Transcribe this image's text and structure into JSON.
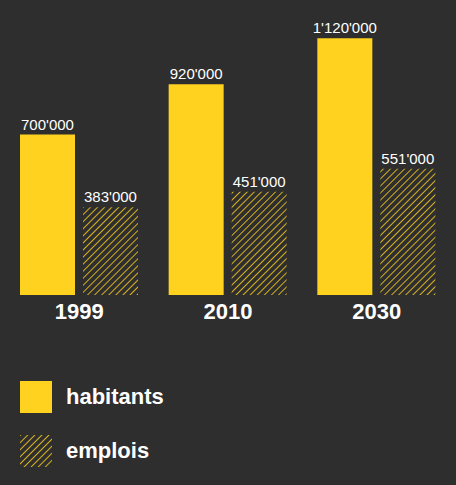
{
  "chart_data": {
    "type": "bar",
    "categories": [
      "1999",
      "2010",
      "2030"
    ],
    "series": [
      {
        "name": "habitants",
        "color": "#ffd21f",
        "line_style": "solid",
        "values": [
          700000,
          920000,
          1120000
        ],
        "value_labels": [
          "700'000",
          "920'000",
          "1'120'000"
        ]
      },
      {
        "name": "emplois",
        "color": "#ffd21f",
        "line_style": "hatched",
        "values": [
          383000,
          451000,
          551000
        ],
        "value_labels": [
          "383'000",
          "451'000",
          "551'000"
        ]
      }
    ],
    "ylim": [
      0,
      1200000
    ],
    "tick_labels": "x",
    "data_labels": true,
    "legend": "bottom"
  }
}
